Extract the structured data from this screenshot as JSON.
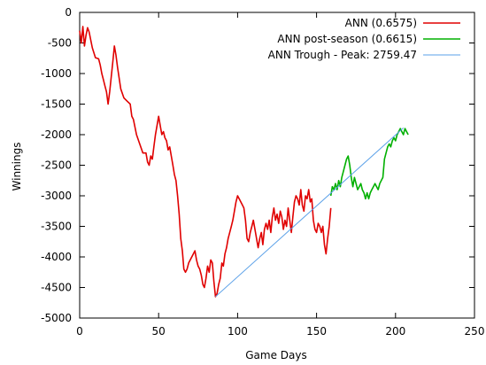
{
  "chart_data": {
    "type": "line",
    "title": "",
    "xlabel": "Game Days",
    "ylabel": "Winnings",
    "xlim": [
      0,
      250
    ],
    "ylim": [
      -5000,
      0
    ],
    "x_ticks": [
      0,
      50,
      100,
      150,
      200,
      250
    ],
    "y_ticks": [
      0,
      -500,
      -1000,
      -1500,
      -2000,
      -2500,
      -3000,
      -3500,
      -4000,
      -4500,
      -5000
    ],
    "grid": false,
    "legend_position": "top-right",
    "series": [
      {
        "name": "ANN (0.6575)",
        "color": "#e00000",
        "points": [
          [
            0,
            -300
          ],
          [
            1,
            -500
          ],
          [
            2,
            -230
          ],
          [
            3,
            -550
          ],
          [
            4,
            -380
          ],
          [
            5,
            -250
          ],
          [
            6,
            -320
          ],
          [
            7,
            -450
          ],
          [
            8,
            -580
          ],
          [
            10,
            -740
          ],
          [
            12,
            -760
          ],
          [
            13,
            -860
          ],
          [
            14,
            -1000
          ],
          [
            15,
            -1100
          ],
          [
            16,
            -1200
          ],
          [
            17,
            -1300
          ],
          [
            18,
            -1500
          ],
          [
            19,
            -1300
          ],
          [
            20,
            -1050
          ],
          [
            21,
            -800
          ],
          [
            22,
            -550
          ],
          [
            23,
            -700
          ],
          [
            24,
            -900
          ],
          [
            26,
            -1250
          ],
          [
            28,
            -1400
          ],
          [
            30,
            -1450
          ],
          [
            32,
            -1500
          ],
          [
            33,
            -1700
          ],
          [
            34,
            -1750
          ],
          [
            36,
            -2000
          ],
          [
            38,
            -2150
          ],
          [
            40,
            -2300
          ],
          [
            42,
            -2300
          ],
          [
            43,
            -2450
          ],
          [
            44,
            -2500
          ],
          [
            45,
            -2350
          ],
          [
            46,
            -2400
          ],
          [
            47,
            -2200
          ],
          [
            48,
            -2000
          ],
          [
            49,
            -1850
          ],
          [
            50,
            -1700
          ],
          [
            51,
            -1850
          ],
          [
            52,
            -2000
          ],
          [
            53,
            -1950
          ],
          [
            54,
            -2050
          ],
          [
            55,
            -2100
          ],
          [
            56,
            -2250
          ],
          [
            57,
            -2200
          ],
          [
            58,
            -2350
          ],
          [
            59,
            -2500
          ],
          [
            60,
            -2650
          ],
          [
            61,
            -2750
          ],
          [
            62,
            -3000
          ],
          [
            63,
            -3300
          ],
          [
            64,
            -3700
          ],
          [
            65,
            -3900
          ],
          [
            66,
            -4200
          ],
          [
            67,
            -4250
          ],
          [
            68,
            -4200
          ],
          [
            69,
            -4100
          ],
          [
            70,
            -4050
          ],
          [
            72,
            -3950
          ],
          [
            73,
            -3900
          ],
          [
            74,
            -4050
          ],
          [
            75,
            -4150
          ],
          [
            76,
            -4200
          ],
          [
            77,
            -4300
          ],
          [
            78,
            -4450
          ],
          [
            79,
            -4500
          ],
          [
            80,
            -4350
          ],
          [
            81,
            -4150
          ],
          [
            82,
            -4250
          ],
          [
            83,
            -4050
          ],
          [
            84,
            -4100
          ],
          [
            85,
            -4400
          ],
          [
            86,
            -4650
          ],
          [
            87,
            -4600
          ],
          [
            88,
            -4450
          ],
          [
            89,
            -4350
          ],
          [
            90,
            -4100
          ],
          [
            91,
            -4150
          ],
          [
            92,
            -3950
          ],
          [
            93,
            -3850
          ],
          [
            94,
            -3700
          ],
          [
            95,
            -3600
          ],
          [
            96,
            -3500
          ],
          [
            97,
            -3400
          ],
          [
            98,
            -3250
          ],
          [
            99,
            -3100
          ],
          [
            100,
            -3000
          ],
          [
            101,
            -3050
          ],
          [
            102,
            -3100
          ],
          [
            103,
            -3150
          ],
          [
            104,
            -3200
          ],
          [
            105,
            -3400
          ],
          [
            106,
            -3700
          ],
          [
            107,
            -3750
          ],
          [
            108,
            -3600
          ],
          [
            109,
            -3500
          ],
          [
            110,
            -3400
          ],
          [
            111,
            -3550
          ],
          [
            112,
            -3700
          ],
          [
            113,
            -3850
          ],
          [
            114,
            -3700
          ],
          [
            115,
            -3600
          ],
          [
            116,
            -3800
          ],
          [
            117,
            -3550
          ],
          [
            118,
            -3450
          ],
          [
            119,
            -3550
          ],
          [
            120,
            -3400
          ],
          [
            121,
            -3600
          ],
          [
            122,
            -3350
          ],
          [
            123,
            -3200
          ],
          [
            124,
            -3400
          ],
          [
            125,
            -3300
          ],
          [
            126,
            -3450
          ],
          [
            127,
            -3250
          ],
          [
            128,
            -3350
          ],
          [
            129,
            -3550
          ],
          [
            130,
            -3400
          ],
          [
            131,
            -3500
          ],
          [
            132,
            -3200
          ],
          [
            133,
            -3400
          ],
          [
            134,
            -3600
          ],
          [
            135,
            -3350
          ],
          [
            136,
            -3100
          ],
          [
            137,
            -3000
          ],
          [
            138,
            -3050
          ],
          [
            139,
            -3150
          ],
          [
            140,
            -2900
          ],
          [
            141,
            -3150
          ],
          [
            142,
            -3250
          ],
          [
            143,
            -3000
          ],
          [
            144,
            -3050
          ],
          [
            145,
            -2900
          ],
          [
            146,
            -3100
          ],
          [
            147,
            -3050
          ],
          [
            148,
            -3400
          ],
          [
            149,
            -3550
          ],
          [
            150,
            -3600
          ],
          [
            151,
            -3450
          ],
          [
            152,
            -3500
          ],
          [
            153,
            -3600
          ],
          [
            154,
            -3500
          ],
          [
            155,
            -3800
          ],
          [
            156,
            -3950
          ],
          [
            157,
            -3700
          ],
          [
            158,
            -3500
          ],
          [
            159,
            -3200
          ]
        ]
      },
      {
        "name": "ANN post-season (0.6615)",
        "color": "#00b000",
        "points": [
          [
            159,
            -3000
          ],
          [
            160,
            -2850
          ],
          [
            161,
            -2900
          ],
          [
            162,
            -2800
          ],
          [
            163,
            -2900
          ],
          [
            164,
            -2750
          ],
          [
            165,
            -2850
          ],
          [
            166,
            -2700
          ],
          [
            167,
            -2600
          ],
          [
            168,
            -2500
          ],
          [
            169,
            -2400
          ],
          [
            170,
            -2350
          ],
          [
            171,
            -2500
          ],
          [
            172,
            -2700
          ],
          [
            173,
            -2850
          ],
          [
            174,
            -2700
          ],
          [
            175,
            -2800
          ],
          [
            176,
            -2900
          ],
          [
            177,
            -2850
          ],
          [
            178,
            -2800
          ],
          [
            179,
            -2900
          ],
          [
            180,
            -2950
          ],
          [
            181,
            -3050
          ],
          [
            182,
            -2950
          ],
          [
            183,
            -3050
          ],
          [
            184,
            -2950
          ],
          [
            185,
            -2900
          ],
          [
            186,
            -2850
          ],
          [
            187,
            -2800
          ],
          [
            188,
            -2850
          ],
          [
            189,
            -2900
          ],
          [
            190,
            -2800
          ],
          [
            191,
            -2750
          ],
          [
            192,
            -2700
          ],
          [
            193,
            -2400
          ],
          [
            194,
            -2300
          ],
          [
            195,
            -2200
          ],
          [
            196,
            -2150
          ],
          [
            197,
            -2200
          ],
          [
            198,
            -2100
          ],
          [
            199,
            -2050
          ],
          [
            200,
            -2100
          ],
          [
            201,
            -2000
          ],
          [
            202,
            -1950
          ],
          [
            203,
            -1900
          ],
          [
            204,
            -1950
          ],
          [
            205,
            -2000
          ],
          [
            206,
            -1900
          ],
          [
            207,
            -1950
          ],
          [
            208,
            -2000
          ]
        ]
      },
      {
        "name": "ANN Trough - Peak: 2759.47",
        "color": "#5aa0e8",
        "points": [
          [
            86,
            -4650
          ],
          [
            205,
            -1890
          ]
        ]
      }
    ]
  }
}
